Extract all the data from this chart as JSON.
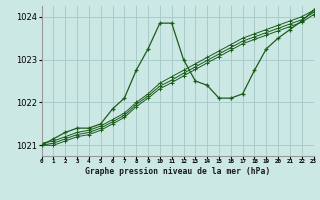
{
  "title": "Graphe pression niveau de la mer (hPa)",
  "background_color": "#cce8e4",
  "grid_color": "#aacccc",
  "line_color": "#1a5c1a",
  "x_labels": [
    "0",
    "1",
    "2",
    "3",
    "4",
    "5",
    "6",
    "7",
    "8",
    "9",
    "10",
    "11",
    "12",
    "13",
    "14",
    "15",
    "16",
    "17",
    "18",
    "19",
    "20",
    "21",
    "22",
    "23"
  ],
  "xlim": [
    0,
    23
  ],
  "ylim": [
    1020.75,
    1024.25
  ],
  "yticks": [
    1021,
    1022,
    1023,
    1024
  ],
  "series1": [
    1021.0,
    1021.15,
    1021.3,
    1021.4,
    1021.4,
    1021.5,
    1021.85,
    1022.1,
    1022.75,
    1023.25,
    1023.85,
    1023.85,
    1023.0,
    1022.5,
    1022.4,
    1022.1,
    1022.1,
    1022.2,
    1022.75,
    1023.25,
    1023.5,
    1023.7,
    1023.9,
    1024.15
  ],
  "series2": [
    1021.05,
    1021.1,
    1021.2,
    1021.3,
    1021.35,
    1021.45,
    1021.6,
    1021.75,
    1022.0,
    1022.2,
    1022.45,
    1022.6,
    1022.75,
    1022.9,
    1023.05,
    1023.2,
    1023.35,
    1023.5,
    1023.6,
    1023.7,
    1023.8,
    1023.9,
    1024.0,
    1024.15
  ],
  "series3": [
    1021.0,
    1021.05,
    1021.15,
    1021.25,
    1021.3,
    1021.4,
    1021.55,
    1021.7,
    1021.95,
    1022.15,
    1022.38,
    1022.52,
    1022.68,
    1022.83,
    1022.98,
    1023.13,
    1023.28,
    1023.43,
    1023.53,
    1023.63,
    1023.73,
    1023.83,
    1023.93,
    1024.1
  ],
  "series4": [
    1021.0,
    1021.0,
    1021.1,
    1021.2,
    1021.25,
    1021.35,
    1021.5,
    1021.65,
    1021.9,
    1022.1,
    1022.32,
    1022.46,
    1022.62,
    1022.77,
    1022.92,
    1023.07,
    1023.22,
    1023.37,
    1023.47,
    1023.57,
    1023.67,
    1023.77,
    1023.87,
    1024.05
  ]
}
